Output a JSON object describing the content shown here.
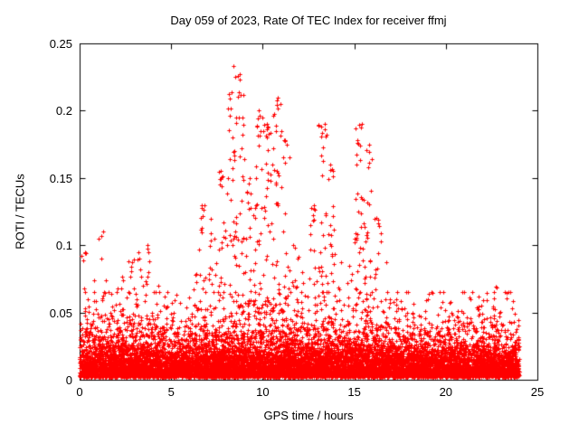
{
  "chart_data": {
    "type": "scatter",
    "title": "Day 059 of 2023, Rate Of TEC Index for receiver ffmj",
    "xlabel": "GPS time / hours",
    "ylabel": "ROTI / TECUs",
    "xlim": [
      0,
      25
    ],
    "ylim": [
      0,
      0.25
    ],
    "xticks": [
      0,
      5,
      10,
      15,
      20,
      25
    ],
    "xtick_labels": [
      "0",
      "5",
      "10",
      "15",
      "20",
      "25"
    ],
    "yticks": [
      0,
      0.05,
      0.1,
      0.15,
      0.2,
      0.25
    ],
    "ytick_labels": [
      "0",
      "0.05",
      "0.1",
      "0.15",
      "0.2",
      "0.25"
    ],
    "marker": "plus",
    "marker_color": "#ff0000",
    "grid": false,
    "legend": "none",
    "background": "#ffffff",
    "series_description": "Single red-plus scatter series: ROTI values sampled over 24 hours; dense noise floor below ~0.045 TECUs with intermittent spike columns, strongest activity between hours 7 and 17.",
    "baseline_band": {
      "min": 0.0,
      "max": 0.045,
      "note": "dense noise floor present across all 0-24 hours"
    },
    "data_x_extent": [
      0,
      24
    ],
    "notable_peaks": [
      [
        8.4,
        0.233
      ],
      [
        8.5,
        0.225
      ],
      [
        10.8,
        0.21
      ],
      [
        9.8,
        0.2
      ],
      [
        10.0,
        0.195
      ],
      [
        13.4,
        0.19
      ],
      [
        15.4,
        0.19
      ],
      [
        11.0,
        0.185
      ],
      [
        15.8,
        0.175
      ],
      [
        13.7,
        0.16
      ],
      [
        7.7,
        0.155
      ],
      [
        9.3,
        0.15
      ],
      [
        6.8,
        0.13
      ],
      [
        12.8,
        0.13
      ],
      [
        16.2,
        0.12
      ],
      [
        1.3,
        0.11
      ],
      [
        3.7,
        0.1
      ],
      [
        0.3,
        0.095
      ]
    ],
    "peak_envelope": [
      [
        0.25,
        0.095
      ],
      [
        0.75,
        0.075
      ],
      [
        1.25,
        0.11
      ],
      [
        1.75,
        0.065
      ],
      [
        2.25,
        0.08
      ],
      [
        2.75,
        0.09
      ],
      [
        3.25,
        0.095
      ],
      [
        3.75,
        0.1
      ],
      [
        4.25,
        0.07
      ],
      [
        4.75,
        0.055
      ],
      [
        5.25,
        0.06
      ],
      [
        5.75,
        0.055
      ],
      [
        6.25,
        0.08
      ],
      [
        6.75,
        0.13
      ],
      [
        7.25,
        0.12
      ],
      [
        7.75,
        0.155
      ],
      [
        8.25,
        0.215
      ],
      [
        8.75,
        0.233
      ],
      [
        9.25,
        0.15
      ],
      [
        9.75,
        0.2
      ],
      [
        10.25,
        0.19
      ],
      [
        10.75,
        0.21
      ],
      [
        11.25,
        0.18
      ],
      [
        11.75,
        0.1
      ],
      [
        12.25,
        0.08
      ],
      [
        12.75,
        0.13
      ],
      [
        13.25,
        0.19
      ],
      [
        13.75,
        0.16
      ],
      [
        14.25,
        0.09
      ],
      [
        14.75,
        0.085
      ],
      [
        15.25,
        0.19
      ],
      [
        15.75,
        0.175
      ],
      [
        16.25,
        0.12
      ],
      [
        16.75,
        0.09
      ],
      [
        17.25,
        0.06
      ],
      [
        17.75,
        0.055
      ],
      [
        18.25,
        0.05
      ],
      [
        18.75,
        0.045
      ],
      [
        19.25,
        0.04
      ],
      [
        19.75,
        0.055
      ],
      [
        20.25,
        0.06
      ],
      [
        20.75,
        0.045
      ],
      [
        21.25,
        0.05
      ],
      [
        21.75,
        0.055
      ],
      [
        22.25,
        0.065
      ],
      [
        22.75,
        0.07
      ],
      [
        23.25,
        0.065
      ],
      [
        23.75,
        0.06
      ]
    ]
  }
}
